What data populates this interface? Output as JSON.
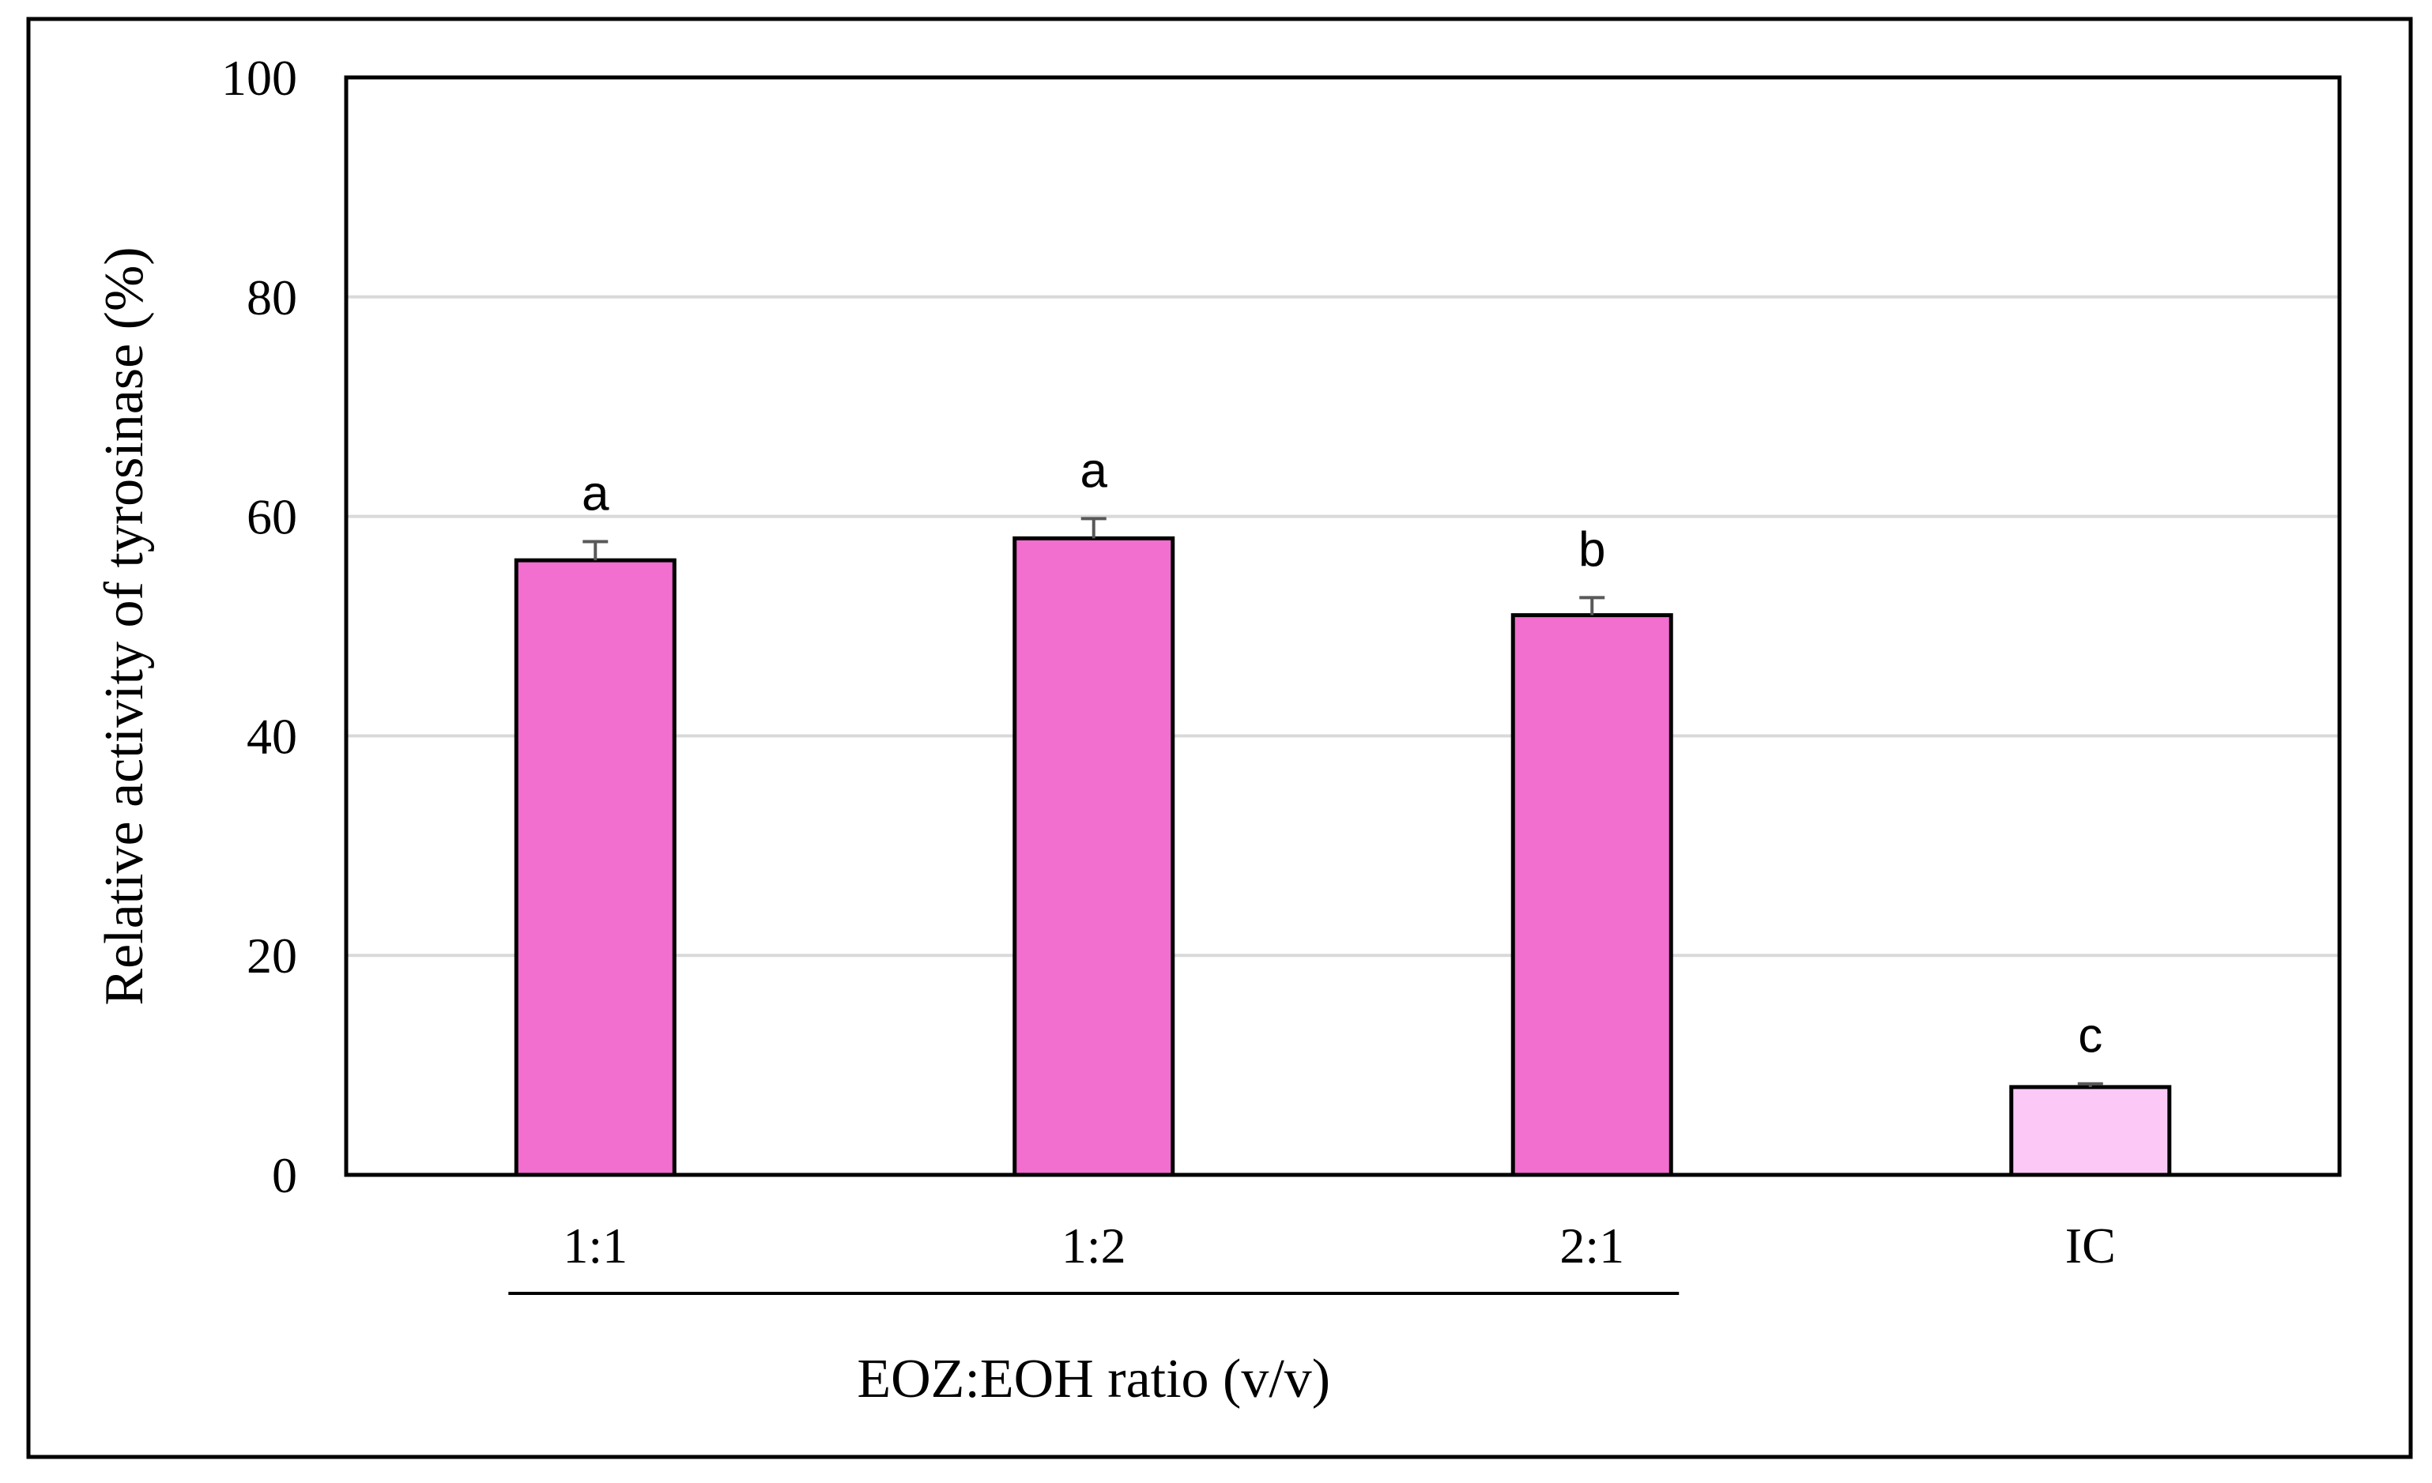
{
  "chart_data": {
    "type": "bar",
    "title": "",
    "xlabel": "EOZ:EOH ratio (v/v)",
    "ylabel": "Relative activity of tyrosinase (%)",
    "ylim": [
      0,
      100
    ],
    "yticks": [
      0,
      20,
      40,
      60,
      80,
      100
    ],
    "grid": true,
    "categories": [
      "1:1",
      "1:2",
      "2:1",
      "IC"
    ],
    "values": [
      56,
      58,
      51,
      8
    ],
    "errors": [
      1.7,
      1.8,
      1.6,
      0.3
    ],
    "significance": [
      "a",
      "a",
      "b",
      "c"
    ],
    "group_bracket": {
      "label": "EOZ:EOH ratio (v/v)",
      "from": "1:1",
      "to": "2:1"
    },
    "colors": {
      "bar": "#f26ecf",
      "bar_control": "#fcc9f7",
      "bar_edge": "#000000",
      "grid": "#d9d9d9",
      "error": "#595959"
    }
  }
}
